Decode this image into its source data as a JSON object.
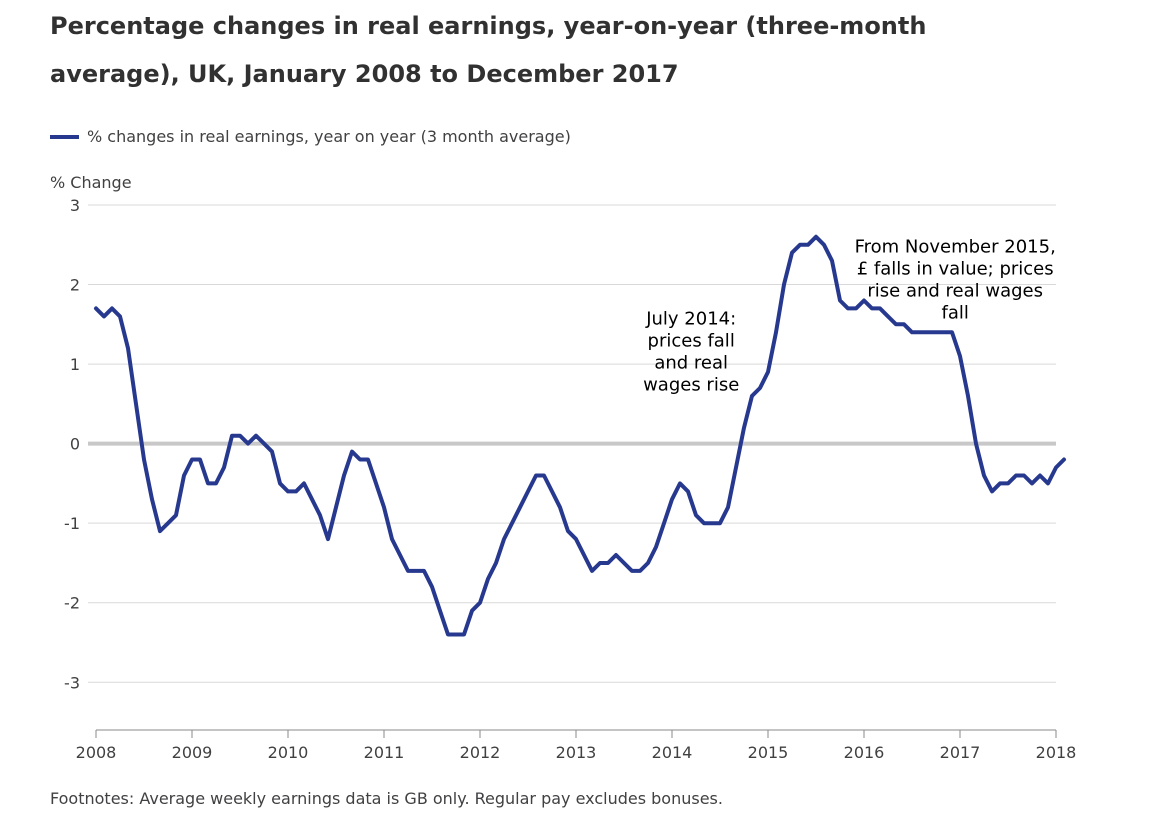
{
  "title": "Percentage changes in real earnings, year-on-year (three-month average), UK, January 2008 to December 2017",
  "legend": {
    "label": "% changes in real earnings, year on year (3 month average)",
    "color": "#27398f"
  },
  "footnote": "Footnotes: Average weekly earnings data is GB only. Regular pay excludes bonuses.",
  "chart_data": {
    "type": "line",
    "title": "Percentage changes in real earnings, year-on-year (three-month average), UK, January 2008 to December 2017",
    "xlabel": "",
    "ylabel": "% Change",
    "xlim": [
      2008,
      2018
    ],
    "ylim": [
      -3.6,
      3
    ],
    "xticks": [
      2008,
      2009,
      2010,
      2011,
      2012,
      2013,
      2014,
      2015,
      2016,
      2017,
      2018
    ],
    "yticks": [
      3,
      2,
      1,
      0,
      -1,
      -2,
      -3
    ],
    "series": [
      {
        "name": "% changes in real earnings, year on year (3 month average)",
        "color": "#27398f",
        "x_start": 2008,
        "step_months": 1,
        "values": [
          1.7,
          1.6,
          1.7,
          1.6,
          1.2,
          0.5,
          -0.2,
          -0.7,
          -1.1,
          -1.0,
          -0.9,
          -0.4,
          -0.2,
          -0.2,
          -0.5,
          -0.5,
          -0.3,
          0.1,
          0.1,
          0.0,
          0.1,
          0.0,
          -0.1,
          -0.5,
          -0.6,
          -0.6,
          -0.5,
          -0.7,
          -0.9,
          -1.2,
          -0.8,
          -0.4,
          -0.1,
          -0.2,
          -0.2,
          -0.5,
          -0.8,
          -1.2,
          -1.4,
          -1.6,
          -1.6,
          -1.6,
          -1.8,
          -2.1,
          -2.4,
          -2.4,
          -2.4,
          -2.1,
          -2.0,
          -1.7,
          -1.5,
          -1.2,
          -1.0,
          -0.8,
          -0.6,
          -0.4,
          -0.4,
          -0.6,
          -0.8,
          -1.1,
          -1.2,
          -1.4,
          -1.6,
          -1.5,
          -1.5,
          -1.4,
          -1.5,
          -1.6,
          -1.6,
          -1.5,
          -1.3,
          -1.0,
          -0.7,
          -0.5,
          -0.6,
          -0.9,
          -1.0,
          -1.0,
          -1.0,
          -0.8,
          -0.3,
          0.2,
          0.6,
          0.7,
          0.9,
          1.4,
          2.0,
          2.4,
          2.5,
          2.5,
          2.6,
          2.5,
          2.3,
          1.8,
          1.7,
          1.7,
          1.8,
          1.7,
          1.7,
          1.6,
          1.5,
          1.5,
          1.4,
          1.4,
          1.4,
          1.4,
          1.4,
          1.4,
          1.1,
          0.6,
          0.0,
          -0.4,
          -0.6,
          -0.5,
          -0.5,
          -0.4,
          -0.4,
          -0.5,
          -0.4,
          -0.5,
          -0.3,
          -0.2
        ]
      }
    ],
    "annotations": [
      {
        "x": 2014.2,
        "y": 1.5,
        "lines": [
          "July 2014:",
          "prices fall",
          "and real",
          "wages rise"
        ]
      },
      {
        "x": 2016.95,
        "y": 2.4,
        "lines": [
          "From November 2015,",
          "£ falls in value; prices",
          "rise and real wages",
          "fall"
        ]
      }
    ]
  }
}
